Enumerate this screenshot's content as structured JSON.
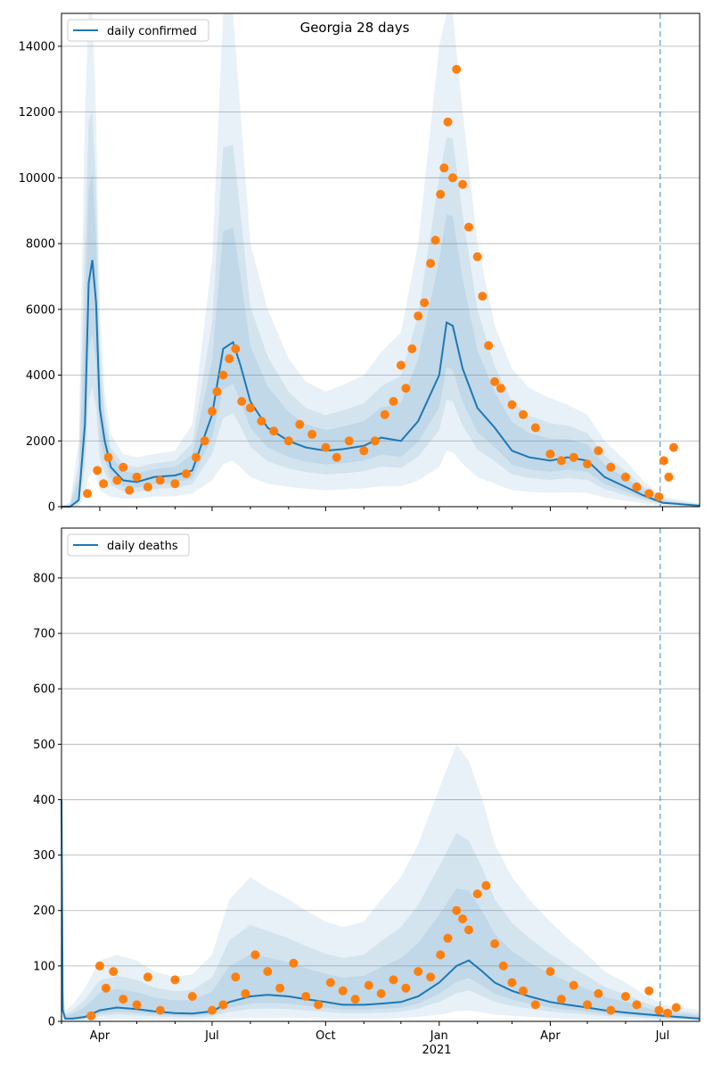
{
  "figure": {
    "title": "Georgia 28 days"
  },
  "colors": {
    "line": "#1f77b4",
    "band": "#1f77b4",
    "points": "#ff7f0e",
    "grid": "#b0b0b0",
    "vline": "#1f77b4"
  },
  "chart_data": [
    {
      "type": "line",
      "legend": {
        "label": "daily confirmed",
        "placement": "top-left"
      },
      "ylim": [
        0,
        15000
      ],
      "yticks": [
        0,
        2000,
        4000,
        6000,
        8000,
        10000,
        12000,
        14000
      ],
      "ytick_labels": [
        "0",
        "2000",
        "4000",
        "6000",
        "8000",
        "10000",
        "12000",
        "14000"
      ],
      "xlim": [
        "2020-03-01",
        "2021-07-31"
      ],
      "grid": "horizontal",
      "vline": "2021-06-29",
      "series": [
        {
          "name": "daily confirmed",
          "x": [
            "2020-03-01",
            "2020-03-08",
            "2020-03-15",
            "2020-03-20",
            "2020-03-23",
            "2020-03-26",
            "2020-03-29",
            "2020-04-01",
            "2020-04-05",
            "2020-04-10",
            "2020-04-20",
            "2020-05-01",
            "2020-05-15",
            "2020-06-01",
            "2020-06-15",
            "2020-07-01",
            "2020-07-10",
            "2020-07-18",
            "2020-07-24",
            "2020-08-01",
            "2020-08-15",
            "2020-09-01",
            "2020-09-15",
            "2020-10-01",
            "2020-10-15",
            "2020-11-01",
            "2020-11-15",
            "2020-12-01",
            "2020-12-15",
            "2021-01-01",
            "2021-01-07",
            "2021-01-12",
            "2021-01-20",
            "2021-02-01",
            "2021-02-15",
            "2021-03-01",
            "2021-03-15",
            "2021-04-01",
            "2021-04-15",
            "2021-05-01",
            "2021-05-15",
            "2021-06-01",
            "2021-06-15",
            "2021-07-01",
            "2021-07-31"
          ],
          "y": [
            0,
            0,
            200,
            2500,
            6800,
            7500,
            6200,
            3000,
            2000,
            1200,
            800,
            750,
            900,
            950,
            1100,
            2800,
            4800,
            5000,
            4300,
            3200,
            2400,
            2000,
            1800,
            1700,
            1750,
            1850,
            2100,
            2000,
            2600,
            4000,
            5600,
            5500,
            4200,
            3000,
            2400,
            1700,
            1500,
            1400,
            1500,
            1400,
            900,
            600,
            350,
            120,
            30
          ]
        }
      ],
      "band_upper": [
        0,
        150,
        2000,
        12000,
        15000,
        15000,
        12000,
        6000,
        3500,
        2200,
        1600,
        1500,
        1600,
        1700,
        2500,
        7500,
        15000,
        15000,
        12000,
        8000,
        6000,
        4500,
        3800,
        3500,
        3700,
        4000,
        4700,
        5300,
        8000,
        14000,
        15000,
        15000,
        12000,
        8000,
        5500,
        4200,
        3600,
        3300,
        3100,
        2800,
        2000,
        1400,
        800,
        300,
        100
      ],
      "band_lower": [
        0,
        0,
        20,
        300,
        900,
        1100,
        900,
        500,
        400,
        300,
        250,
        250,
        300,
        320,
        400,
        800,
        1300,
        1400,
        1200,
        900,
        700,
        600,
        550,
        500,
        520,
        560,
        620,
        620,
        800,
        1200,
        1700,
        1650,
        1300,
        900,
        700,
        500,
        450,
        420,
        440,
        420,
        280,
        180,
        100,
        40,
        10
      ],
      "points": {
        "x": [
          "2020-03-22",
          "2020-03-30",
          "2020-04-04",
          "2020-04-08",
          "2020-04-15",
          "2020-04-20",
          "2020-04-25",
          "2020-05-01",
          "2020-05-10",
          "2020-05-20",
          "2020-06-01",
          "2020-06-10",
          "2020-06-18",
          "2020-06-25",
          "2020-07-01",
          "2020-07-05",
          "2020-07-10",
          "2020-07-15",
          "2020-07-20",
          "2020-07-25",
          "2020-08-01",
          "2020-08-10",
          "2020-08-20",
          "2020-09-01",
          "2020-09-10",
          "2020-09-20",
          "2020-10-01",
          "2020-10-10",
          "2020-10-20",
          "2020-11-01",
          "2020-11-10",
          "2020-11-18",
          "2020-11-25",
          "2020-12-01",
          "2020-12-05",
          "2020-12-10",
          "2020-12-15",
          "2020-12-20",
          "2020-12-25",
          "2020-12-29",
          "2021-01-02",
          "2021-01-05",
          "2021-01-08",
          "2021-01-12",
          "2021-01-15",
          "2021-01-20",
          "2021-01-25",
          "2021-02-01",
          "2021-02-05",
          "2021-02-10",
          "2021-02-15",
          "2021-02-20",
          "2021-03-01",
          "2021-03-10",
          "2021-03-20",
          "2021-04-01",
          "2021-04-10",
          "2021-04-20",
          "2021-05-01",
          "2021-05-10",
          "2021-05-20",
          "2021-06-01",
          "2021-06-10",
          "2021-06-20",
          "2021-06-28",
          "2021-07-02",
          "2021-07-06",
          "2021-07-10"
        ],
        "y": [
          400,
          1100,
          700,
          1500,
          800,
          1200,
          500,
          900,
          600,
          800,
          700,
          1000,
          1500,
          2000,
          2900,
          3500,
          4000,
          4500,
          4800,
          3200,
          3000,
          2600,
          2300,
          2000,
          2500,
          2200,
          1800,
          1500,
          2000,
          1700,
          2000,
          2800,
          3200,
          4300,
          3600,
          4800,
          5800,
          6200,
          7400,
          8100,
          9500,
          10300,
          11700,
          10000,
          13300,
          9800,
          8500,
          7600,
          6400,
          4900,
          3800,
          3600,
          3100,
          2800,
          2400,
          1600,
          1400,
          1500,
          1300,
          1700,
          1200,
          900,
          600,
          400,
          300,
          1400,
          900,
          1800
        ]
      }
    },
    {
      "type": "line",
      "legend": {
        "label": "daily deaths",
        "placement": "top-left"
      },
      "ylim": [
        0,
        890
      ],
      "yticks": [
        0,
        100,
        200,
        300,
        400,
        500,
        600,
        700,
        800
      ],
      "ytick_labels": [
        "0",
        "100",
        "200",
        "300",
        "400",
        "500",
        "600",
        "700",
        "800"
      ],
      "xlim": [
        "2020-03-01",
        "2021-07-31"
      ],
      "x_tick_labels": [
        "Apr",
        "Jul",
        "Oct",
        "Jan",
        "Apr",
        "Jul"
      ],
      "x_secondary_label": "2021",
      "grid": "horizontal",
      "vline": "2021-06-29",
      "series": [
        {
          "name": "daily deaths",
          "x": [
            "2020-03-01",
            "2020-03-02",
            "2020-03-04",
            "2020-03-10",
            "2020-03-20",
            "2020-04-01",
            "2020-04-15",
            "2020-05-01",
            "2020-05-15",
            "2020-06-01",
            "2020-06-15",
            "2020-07-01",
            "2020-07-15",
            "2020-08-01",
            "2020-08-15",
            "2020-09-01",
            "2020-09-15",
            "2020-10-01",
            "2020-10-15",
            "2020-11-01",
            "2020-11-15",
            "2020-12-01",
            "2020-12-15",
            "2021-01-01",
            "2021-01-15",
            "2021-01-25",
            "2021-02-05",
            "2021-02-15",
            "2021-03-01",
            "2021-03-15",
            "2021-04-01",
            "2021-04-15",
            "2021-05-01",
            "2021-05-15",
            "2021-06-01",
            "2021-06-15",
            "2021-07-01",
            "2021-07-31"
          ],
          "y": [
            400,
            20,
            5,
            5,
            8,
            20,
            25,
            22,
            18,
            15,
            14,
            18,
            35,
            45,
            48,
            45,
            40,
            35,
            30,
            30,
            32,
            35,
            45,
            70,
            100,
            110,
            90,
            70,
            55,
            45,
            35,
            30,
            25,
            20,
            16,
            13,
            10,
            5
          ]
        }
      ],
      "band_upper": [
        400,
        60,
        20,
        30,
        60,
        110,
        120,
        110,
        90,
        80,
        85,
        120,
        220,
        260,
        240,
        220,
        200,
        180,
        170,
        180,
        220,
        260,
        320,
        420,
        500,
        470,
        400,
        320,
        260,
        220,
        180,
        150,
        120,
        90,
        70,
        50,
        30,
        20
      ],
      "band_lower": [
        0,
        0,
        0,
        0,
        1,
        3,
        4,
        3,
        3,
        2,
        2,
        3,
        5,
        7,
        7,
        7,
        6,
        5,
        5,
        5,
        5,
        6,
        8,
        12,
        18,
        20,
        16,
        12,
        10,
        8,
        6,
        5,
        4,
        3,
        3,
        2,
        1,
        1
      ],
      "points": {
        "x": [
          "2020-03-25",
          "2020-04-01",
          "2020-04-06",
          "2020-04-12",
          "2020-04-20",
          "2020-05-01",
          "2020-05-10",
          "2020-05-20",
          "2020-06-01",
          "2020-06-15",
          "2020-07-01",
          "2020-07-10",
          "2020-07-20",
          "2020-07-28",
          "2020-08-05",
          "2020-08-15",
          "2020-08-25",
          "2020-09-05",
          "2020-09-15",
          "2020-09-25",
          "2020-10-05",
          "2020-10-15",
          "2020-10-25",
          "2020-11-05",
          "2020-11-15",
          "2020-11-25",
          "2020-12-05",
          "2020-12-15",
          "2020-12-25",
          "2021-01-02",
          "2021-01-08",
          "2021-01-15",
          "2021-01-20",
          "2021-01-25",
          "2021-02-01",
          "2021-02-08",
          "2021-02-15",
          "2021-02-22",
          "2021-03-01",
          "2021-03-10",
          "2021-03-20",
          "2021-04-01",
          "2021-04-10",
          "2021-04-20",
          "2021-05-01",
          "2021-05-10",
          "2021-05-20",
          "2021-06-01",
          "2021-06-10",
          "2021-06-20",
          "2021-06-28",
          "2021-07-05",
          "2021-07-12"
        ],
        "y": [
          10,
          100,
          60,
          90,
          40,
          30,
          80,
          20,
          75,
          45,
          20,
          30,
          80,
          50,
          120,
          90,
          60,
          105,
          45,
          30,
          70,
          55,
          40,
          65,
          50,
          75,
          60,
          90,
          80,
          120,
          150,
          200,
          185,
          165,
          230,
          245,
          140,
          100,
          70,
          55,
          30,
          90,
          40,
          65,
          30,
          50,
          20,
          45,
          30,
          55,
          20,
          15,
          25
        ]
      }
    }
  ]
}
